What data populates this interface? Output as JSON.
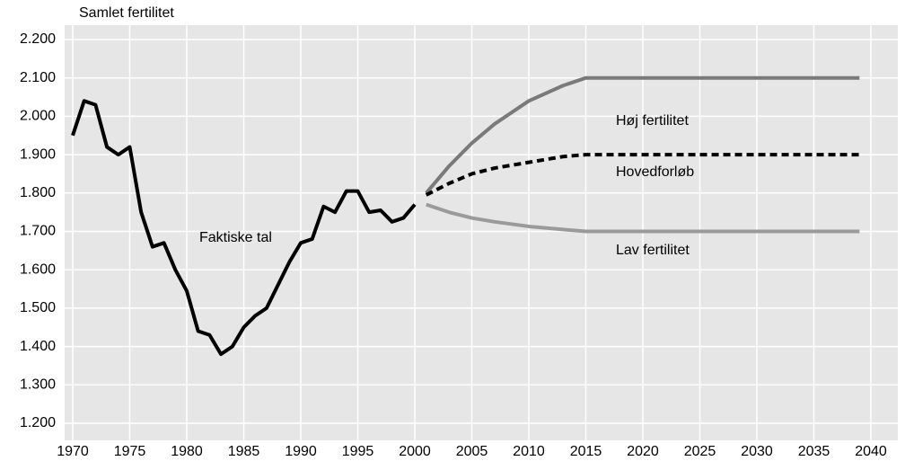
{
  "chart_data": {
    "type": "line",
    "y_axis_label": "Samlet fertilitet",
    "xlim": [
      1970,
      2040
    ],
    "xticks": [
      1970,
      1975,
      1980,
      1985,
      1990,
      1995,
      2000,
      2005,
      2010,
      2015,
      2020,
      2025,
      2030,
      2035,
      2040
    ],
    "ylim": [
      1200,
      2200
    ],
    "yticks": [
      {
        "value": 1200,
        "label": "1.200"
      },
      {
        "value": 1300,
        "label": "1.300"
      },
      {
        "value": 1400,
        "label": "1.400"
      },
      {
        "value": 1500,
        "label": "1.500"
      },
      {
        "value": 1600,
        "label": "1.600"
      },
      {
        "value": 1700,
        "label": "1.700"
      },
      {
        "value": 1800,
        "label": "1.800"
      },
      {
        "value": 1900,
        "label": "1.900"
      },
      {
        "value": 2000,
        "label": "2.000"
      },
      {
        "value": 2100,
        "label": "2.100"
      },
      {
        "value": 2200,
        "label": "2.200"
      }
    ],
    "grid": true,
    "series": [
      {
        "name": "Faktiske tal",
        "color": "#000000",
        "dashed": false,
        "x": [
          1970,
          1971,
          1972,
          1973,
          1974,
          1975,
          1976,
          1977,
          1978,
          1979,
          1980,
          1981,
          1982,
          1983,
          1984,
          1985,
          1986,
          1987,
          1988,
          1989,
          1990,
          1991,
          1992,
          1993,
          1994,
          1995,
          1996,
          1997,
          1998,
          1999,
          2000
        ],
        "values": [
          1950,
          2040,
          2030,
          1920,
          1900,
          1920,
          1750,
          1660,
          1670,
          1600,
          1545,
          1440,
          1430,
          1380,
          1400,
          1450,
          1480,
          1500,
          1560,
          1620,
          1670,
          1680,
          1765,
          1750,
          1805,
          1805,
          1750,
          1755,
          1725,
          1735,
          1770
        ]
      },
      {
        "name": "Høj fertilitet",
        "color": "#7a7a7a",
        "dashed": false,
        "x": [
          2001,
          2003,
          2005,
          2007,
          2010,
          2013,
          2015,
          2039
        ],
        "values": [
          1800,
          1870,
          1930,
          1980,
          2040,
          2080,
          2100,
          2100
        ]
      },
      {
        "name": "Hovedforløb",
        "color": "#000000",
        "dashed": true,
        "x": [
          2001,
          2003,
          2005,
          2007,
          2010,
          2013,
          2015,
          2039
        ],
        "values": [
          1795,
          1825,
          1850,
          1865,
          1880,
          1895,
          1900,
          1900
        ]
      },
      {
        "name": "Lav fertilitet",
        "color": "#9a9a9a",
        "dashed": false,
        "x": [
          2001,
          2003,
          2005,
          2007,
          2010,
          2013,
          2015,
          2039
        ],
        "values": [
          1770,
          1750,
          1735,
          1725,
          1713,
          1705,
          1700,
          1700
        ]
      }
    ]
  }
}
